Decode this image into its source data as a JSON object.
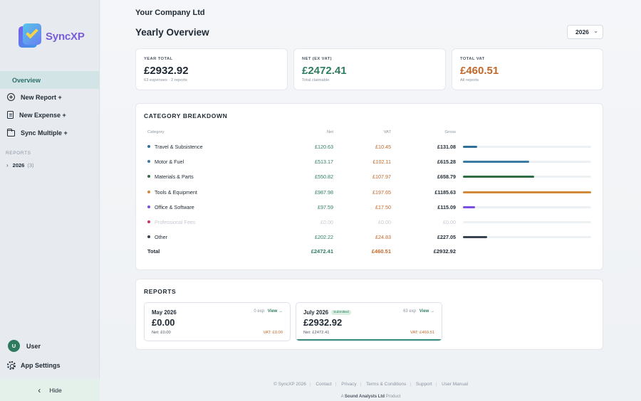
{
  "app": {
    "name": "SyncXP"
  },
  "sidebar": {
    "overview": "Overview",
    "items": [
      {
        "label": "New Report +",
        "icon": "plus-circle-icon"
      },
      {
        "label": "New Expense +",
        "icon": "document-icon"
      },
      {
        "label": "Sync Multiple +",
        "icon": "folder-icon"
      }
    ],
    "reports_label": "REPORTS",
    "tree": {
      "year": "2026",
      "count": "(3)"
    },
    "user": {
      "initial": "U",
      "name": "User"
    },
    "settings": "App Settings",
    "hide": "Hide"
  },
  "header": {
    "company": "Your Company Ltd",
    "title": "Yearly Overview",
    "year_select": "2026"
  },
  "stats": [
    {
      "label": "YEAR TOTAL",
      "value": "£2932.92",
      "sub": "63 expenses · 2 reports",
      "color": "#1f2933"
    },
    {
      "label": "NET (EX VAT)",
      "value": "£2472.41",
      "sub": "Total claimable",
      "color": "#2f7d5f"
    },
    {
      "label": "TOTAL VAT",
      "value": "£460.51",
      "sub": "All reports",
      "color": "#c0672a"
    }
  ],
  "breakdown": {
    "title": "CATEGORY BREAKDOWN",
    "headers": {
      "category": "Category",
      "net": "Net",
      "vat": "VAT",
      "gross": "Gross"
    },
    "rows": [
      {
        "name": "Travel & Subsistence",
        "net": "£120.63",
        "vat": "£10.45",
        "gross": "£131.08",
        "gross_value": 131.08,
        "color": "#2f6f9a"
      },
      {
        "name": "Motor & Fuel",
        "net": "£513.17",
        "vat": "£102.11",
        "gross": "£615.28",
        "gross_value": 615.28,
        "color": "#3d7aa0"
      },
      {
        "name": "Materials & Parts",
        "net": "£550.82",
        "vat": "£107.97",
        "gross": "£658.79",
        "gross_value": 658.79,
        "color": "#2e6e45"
      },
      {
        "name": "Tools & Equipment",
        "net": "£987.98",
        "vat": "£197.65",
        "gross": "£1185.63",
        "gross_value": 1185.63,
        "color": "#d08a3a"
      },
      {
        "name": "Office & Software",
        "net": "£97.59",
        "vat": "£17.50",
        "gross": "£115.09",
        "gross_value": 115.09,
        "color": "#7b4fe0"
      },
      {
        "name": "Professional Fees",
        "net": "£0.00",
        "vat": "£0.00",
        "gross": "£0.00",
        "gross_value": 0,
        "color": "#c8326a",
        "muted": true
      },
      {
        "name": "Other",
        "net": "£202.22",
        "vat": "£24.83",
        "gross": "£227.05",
        "gross_value": 227.05,
        "color": "#3a4350"
      }
    ],
    "total": {
      "name": "Total",
      "net": "£2472.41",
      "vat": "£460.51",
      "gross": "£2932.92"
    },
    "max_value": 1185.63
  },
  "reports": {
    "title": "REPORTS",
    "cards": [
      {
        "month": "May 2026",
        "badge": "",
        "exp": "0 exp",
        "view": "View →",
        "amount": "£0.00",
        "net": "Net: £0.00",
        "vat": "VAT: £0.00"
      },
      {
        "month": "July 2026",
        "badge": "Submitted",
        "exp": "63 exp",
        "view": "View →",
        "amount": "£2932.92",
        "net": "Net: £2472.41",
        "vat": "VAT: £460.51"
      }
    ]
  },
  "footer": {
    "links": [
      "© SyncXP 2026",
      "Contact",
      "Privacy",
      "Terms & Conditions",
      "Support",
      "User Manual"
    ],
    "product_prefix": "A",
    "product_company": "Sound Analysts Ltd",
    "product_suffix": "Product"
  }
}
